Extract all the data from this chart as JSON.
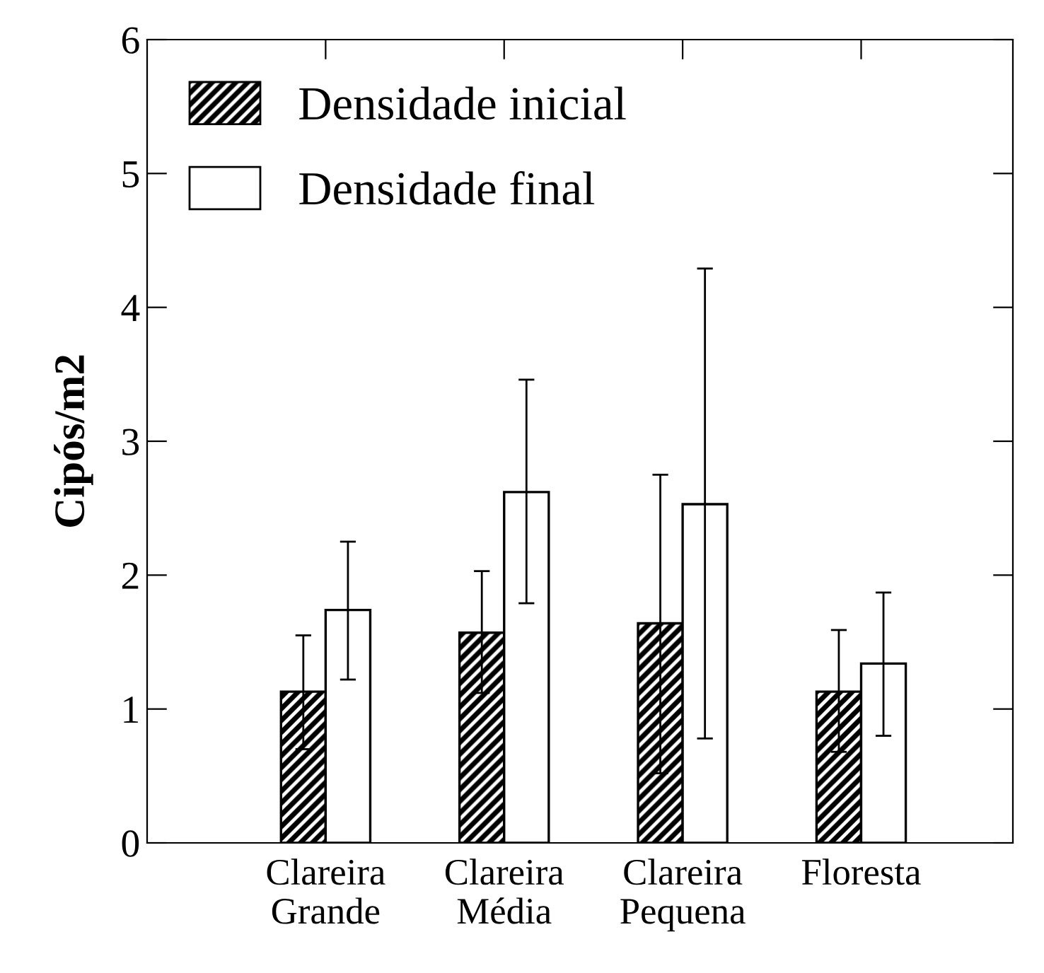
{
  "chart_data": {
    "type": "bar",
    "ylabel": "Cipós/m2",
    "categories": [
      "Clareira\nGrande",
      "Clareira\nMédia",
      "Clareira\nPequena",
      "Floresta"
    ],
    "series": [
      {
        "name": "Densidade inicial",
        "color": "#000000",
        "values": [
          1.13,
          1.57,
          1.64,
          1.13
        ],
        "errors": [
          [
            0.7,
            1.55
          ],
          [
            1.12,
            2.03
          ],
          [
            0.52,
            2.75
          ],
          [
            0.68,
            1.59
          ]
        ]
      },
      {
        "name": "Densidade final",
        "color": "#ffffff",
        "values": [
          1.74,
          2.62,
          2.53,
          1.34
        ],
        "errors": [
          [
            1.22,
            2.25
          ],
          [
            1.79,
            3.46
          ],
          [
            0.78,
            4.29
          ],
          [
            0.8,
            1.87
          ]
        ]
      }
    ],
    "ylim": [
      0,
      6
    ],
    "yticks": [
      0,
      1,
      2,
      3,
      4,
      5,
      6
    ],
    "grid": false,
    "legend": "top left"
  }
}
